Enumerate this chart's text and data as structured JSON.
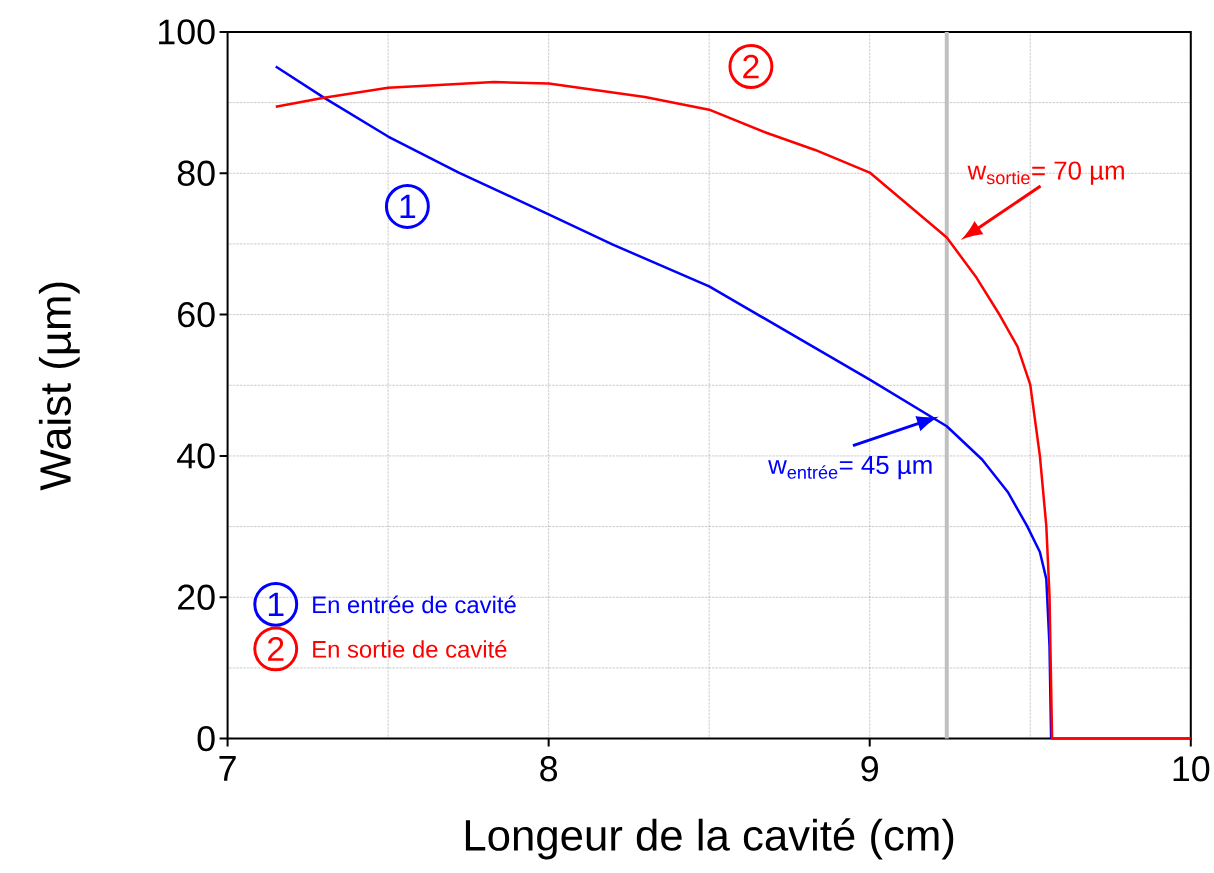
{
  "chart_data": {
    "type": "line",
    "xlabel": "Longeur de la cavité (cm)",
    "ylabel": "Waist (µm)",
    "xlim": [
      7,
      10
    ],
    "ylim": [
      0,
      100
    ],
    "xticks": [
      7,
      8,
      9,
      10
    ],
    "yticks": [
      0,
      20,
      40,
      60,
      80,
      100
    ],
    "grid": true,
    "legend": "bottom left",
    "series": [
      {
        "name": "En entrée de cavité",
        "color": "#0000ff",
        "x": [
          7.15,
          7.3,
          7.5,
          7.72,
          8.0,
          8.2,
          8.5,
          9.0,
          9.24,
          9.35,
          9.43,
          9.49,
          9.53,
          9.55,
          9.56,
          9.565
        ],
        "values": [
          95.1,
          90.7,
          85.2,
          80.1,
          74.2,
          69.9,
          64,
          50.8,
          44.2,
          39.5,
          34.9,
          30.1,
          26.4,
          22.6,
          13.1,
          0
        ]
      },
      {
        "name": "En sortie de cavité",
        "color": "#ff0000",
        "x": [
          7.15,
          7.3,
          7.5,
          7.83,
          8.0,
          8.3,
          8.5,
          8.68,
          8.83,
          9.0,
          9.24,
          9.33,
          9.4,
          9.46,
          9.5,
          9.53,
          9.55,
          9.56,
          9.568,
          10
        ],
        "values": [
          89.4,
          90.7,
          92.1,
          92.9,
          92.7,
          90.8,
          89.0,
          85.7,
          83.3,
          80.1,
          70.9,
          65.4,
          60.3,
          55.5,
          50.1,
          40.0,
          30.1,
          20.2,
          0,
          0
        ]
      }
    ],
    "ref_lines": [
      {
        "axis": "x",
        "value": 9.24,
        "color": "#c0c0c0"
      }
    ],
    "annotations": [
      {
        "text": "1",
        "x": 7.56,
        "y": 75.3
      },
      {
        "text": "2",
        "x": 8.63,
        "y": 95.1
      },
      {
        "text": "w$_{entrée}$= 45 µm",
        "x": 9.24,
        "y": 45
      },
      {
        "text": "w$_{sortie}$= 70 µm",
        "x": 9.24,
        "y": 70
      }
    ]
  }
}
